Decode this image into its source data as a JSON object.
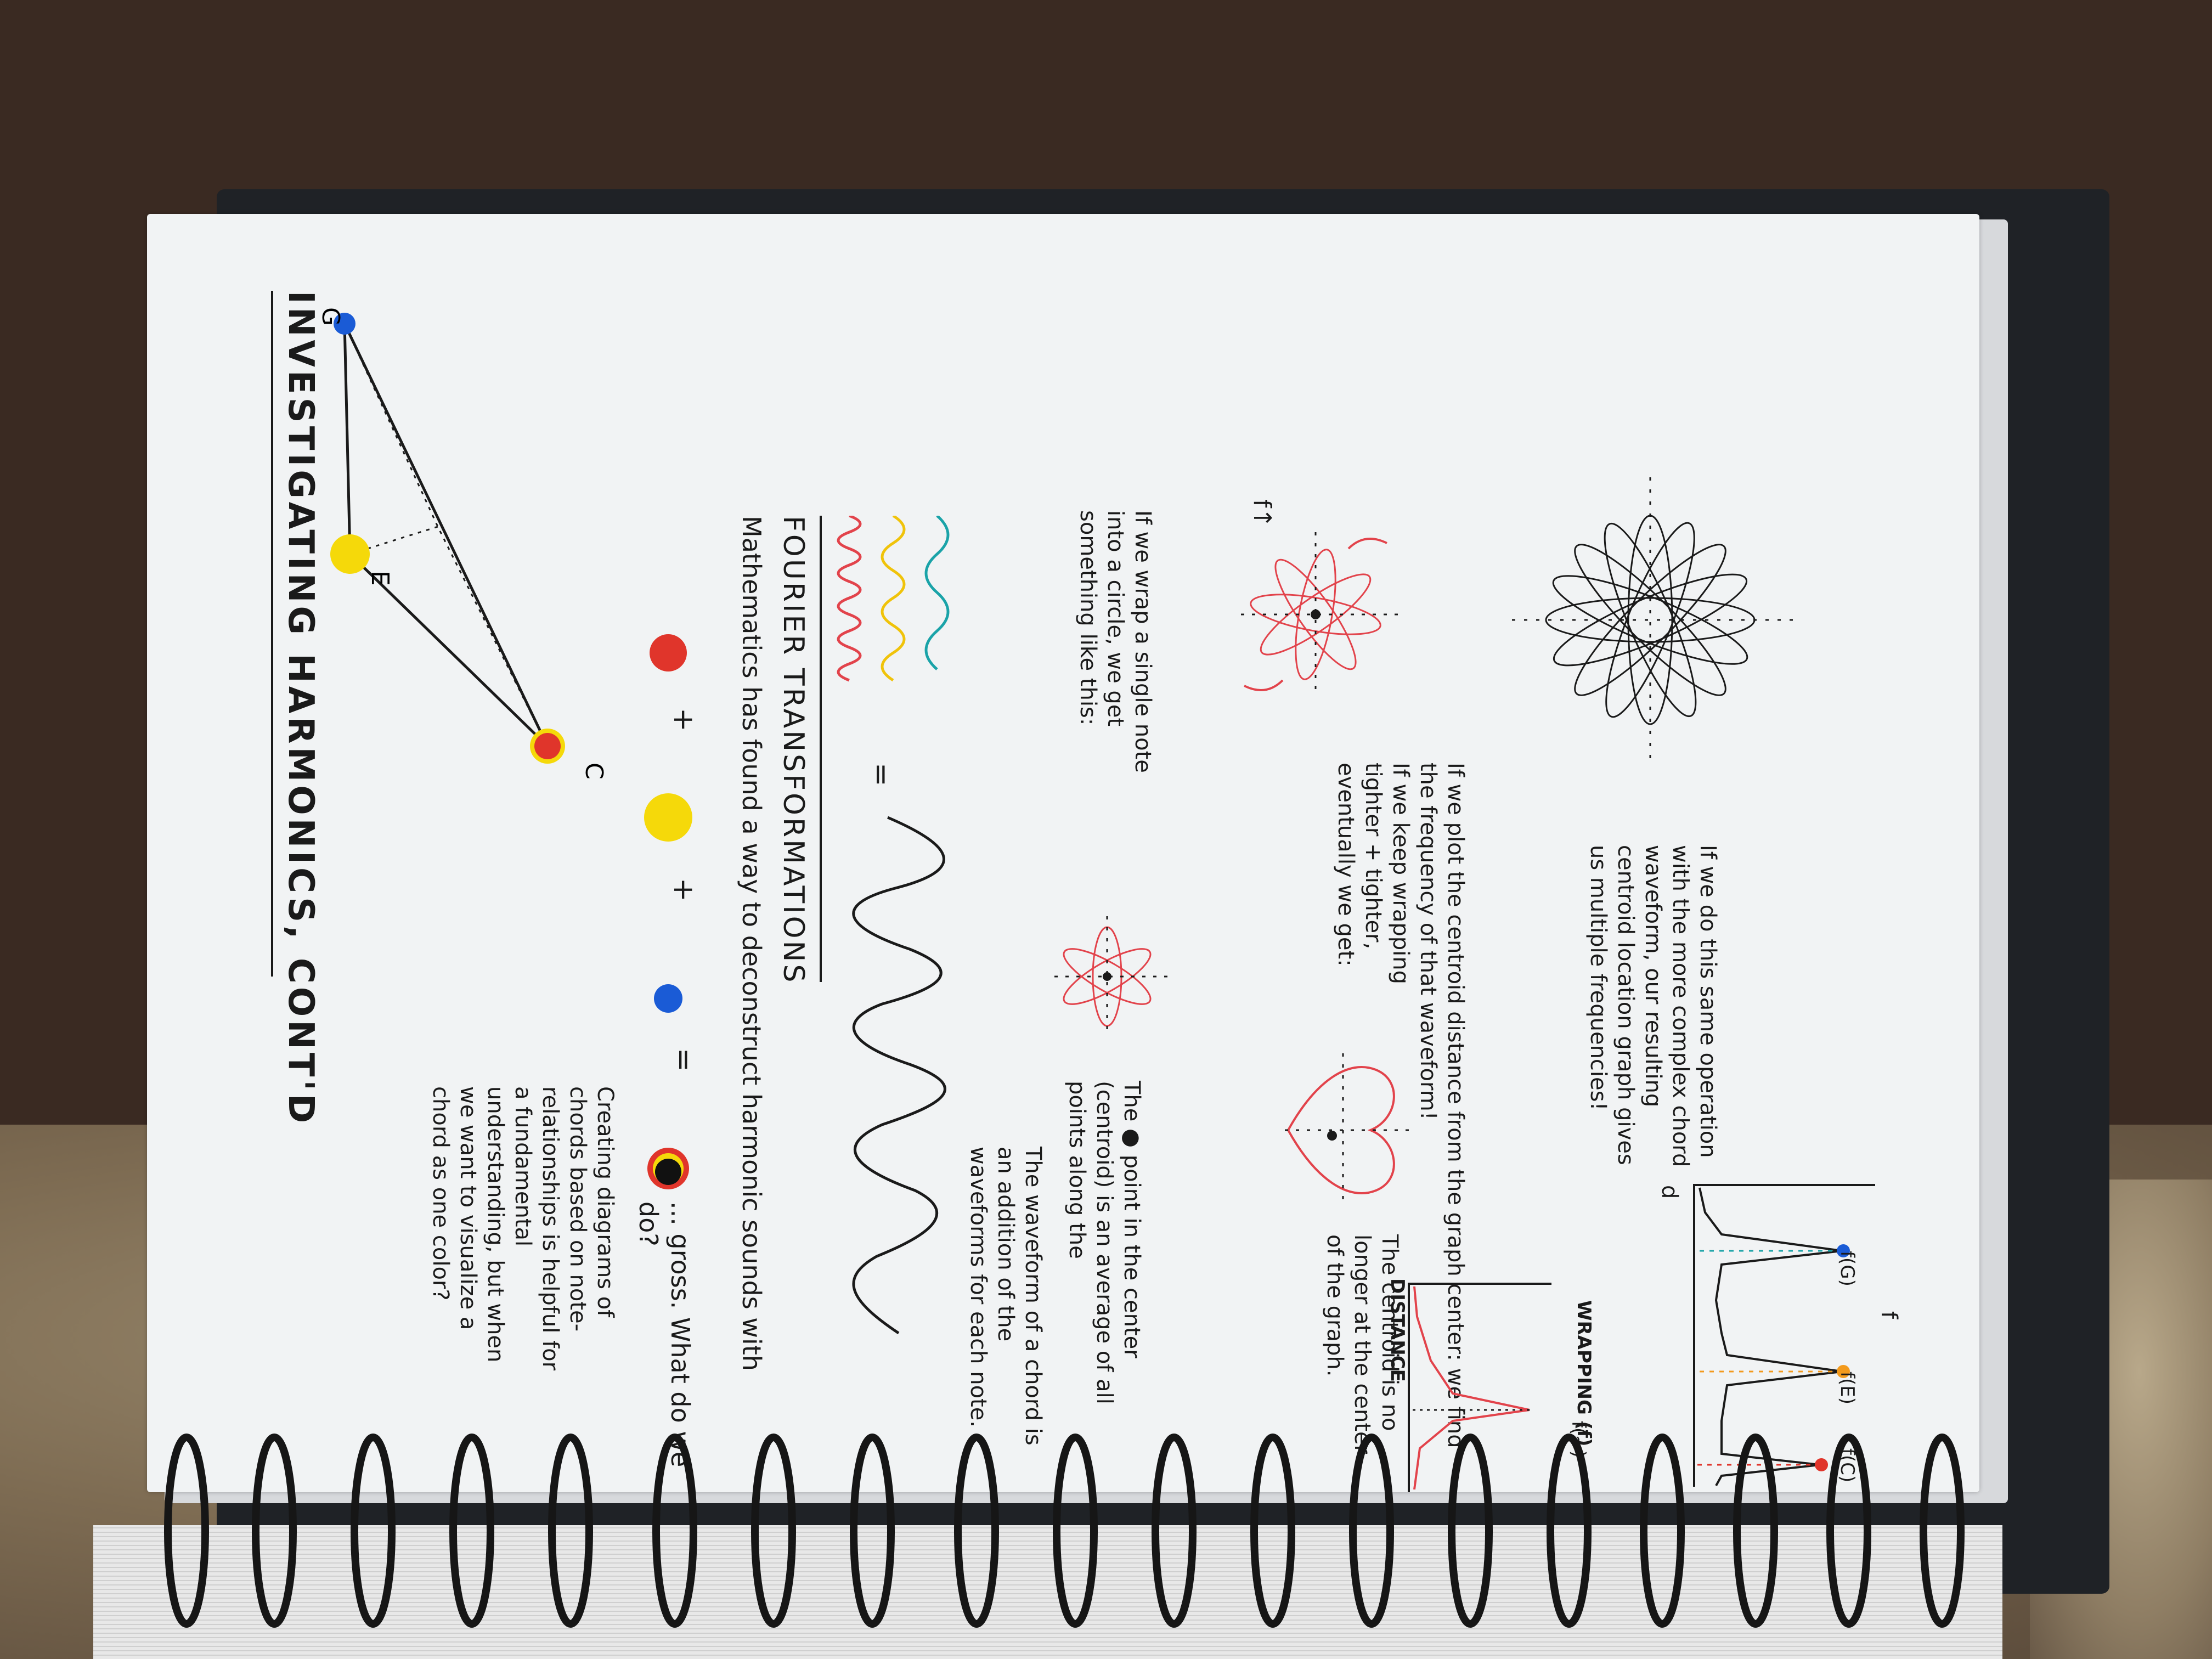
{
  "title": "INVESTIGATING HARMONICS, CONT'D",
  "triangle_labels": {
    "g": "G",
    "e": "E",
    "c": "C"
  },
  "color_sum": {
    "plus1": "+",
    "plus2": "+",
    "equals": "=",
    "gross": "... gross. What do we do?"
  },
  "intro_text": "Creating diagrams of chords based on note-relationships is helpful for a fundamental understanding, but when we want to visualize a chord as one color?",
  "math_line": "Mathematics has found a way to deconstruct harmonic sounds with",
  "fourier": "FOURIER TRANSFORMATIONS",
  "equals_sign": "=",
  "waveform_note": "The waveform of a chord is an addition of the waveforms for each note.",
  "wrap_text": "If we wrap a single note into a circle, we get something like this:",
  "centroid_text": "The ● point in the center (centroid) is an average of all points along the",
  "keep_wrapping": "If we keep wrapping tighter + tighter, eventually we get:",
  "centroid_moved": "The centroid is no longer at the center of the graph.",
  "f_arrow": "f↑",
  "plot_text": "If we plot the centroid distance from the graph center: we find the frequency of that waveform!",
  "graph1": {
    "ylabel": "DISTANCE",
    "xlabel": "WRAPPING (f)",
    "peak": "f(~)"
  },
  "complex_text": "If we do this same operation with the more complex chord waveform, our resulting centroid location graph gives us multiple frequencies!",
  "graph2": {
    "ylabel": "d",
    "xlabel": "f",
    "peaks": [
      "f(G)",
      "f(E)",
      "f(C)"
    ]
  },
  "colors": {
    "red": "#e0352b",
    "yellow": "#f5d90a",
    "blue": "#1a5bd6",
    "orange": "#f39a1c",
    "teal": "#1aa3a8",
    "ink": "#1a1a1a",
    "pinkred": "#e2434b"
  }
}
